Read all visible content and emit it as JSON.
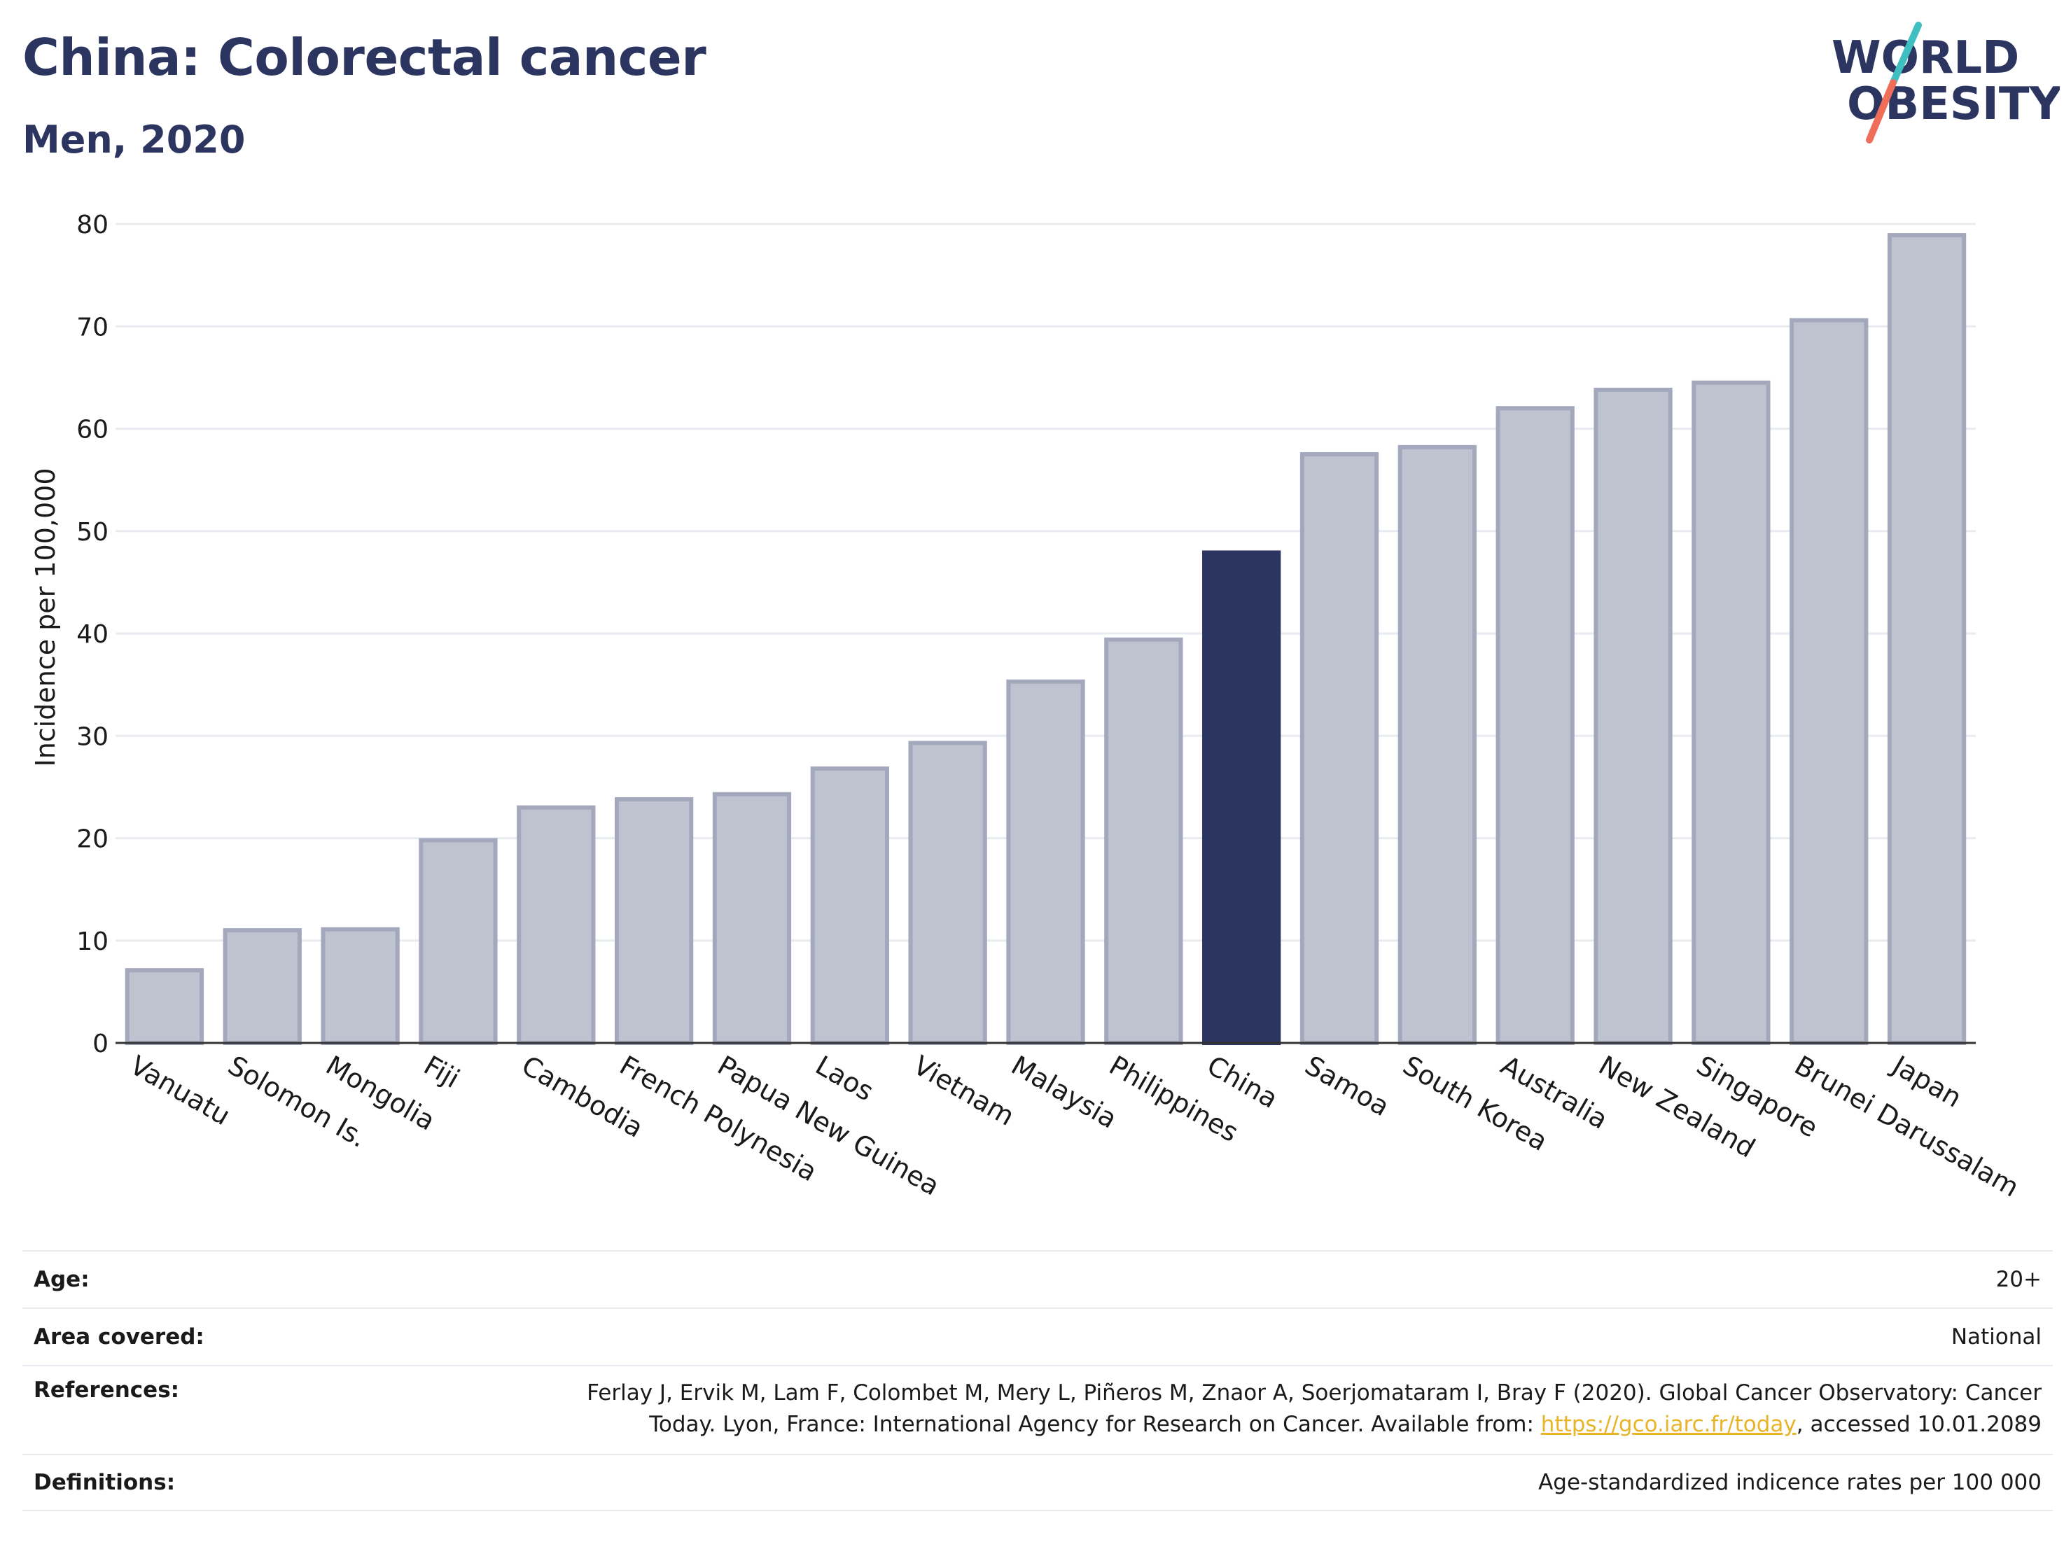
{
  "header": {
    "title": "China: Colorectal cancer",
    "subtitle": "Men, 2020"
  },
  "logo": {
    "line1": "WORLD",
    "line2": "OBESITY",
    "colors": {
      "text": "#2b3560",
      "slash_teal": "#3fbfbf",
      "slash_coral": "#ef6e5a"
    }
  },
  "colors": {
    "bar_default": "#bfc2cf",
    "bar_default_border": "#a3a8bd",
    "bar_highlight": "#2b3560",
    "grid": "#e8ebf0",
    "axis": "#333333"
  },
  "chart_data": {
    "type": "bar",
    "title": "China: Colorectal cancer",
    "subtitle": "Men, 2020",
    "xlabel": "",
    "ylabel": "Incidence per 100,000",
    "ylim": [
      0,
      80
    ],
    "yticks": [
      0,
      10,
      20,
      30,
      40,
      50,
      60,
      70,
      80
    ],
    "grid": true,
    "highlight": "China",
    "categories": [
      "Vanuatu",
      "Solomon Is.",
      "Mongolia",
      "Fiji",
      "Cambodia",
      "French Polynesia",
      "Papua New Guinea",
      "Laos",
      "Vietnam",
      "Malaysia",
      "Philippines",
      "China",
      "Samoa",
      "South Korea",
      "Australia",
      "New Zealand",
      "Singapore",
      "Brunei Darussalam",
      "Japan"
    ],
    "values": [
      7.1,
      11.0,
      11.1,
      19.8,
      23.0,
      23.8,
      24.3,
      26.8,
      29.3,
      35.3,
      39.4,
      47.9,
      57.5,
      58.2,
      62.0,
      63.8,
      64.5,
      70.6,
      78.9
    ]
  },
  "info": [
    {
      "label": "Age:",
      "value": "20+"
    },
    {
      "label": "Area covered:",
      "value": "National"
    },
    {
      "label": "References:",
      "value_pre": "Ferlay J, Ervik M, Lam F, Colombet M, Mery L, Piñeros M, Znaor A, Soerjomataram I, Bray F (2020). Global Cancer Observatory: Cancer Today. Lyon, France: International Agency for Research on Cancer. Available from: ",
      "link": "https://gco.iarc.fr/today",
      "value_post": ", accessed 10.01.2089"
    },
    {
      "label": "Definitions:",
      "value": "Age-standardized indicence rates per 100 000"
    }
  ]
}
